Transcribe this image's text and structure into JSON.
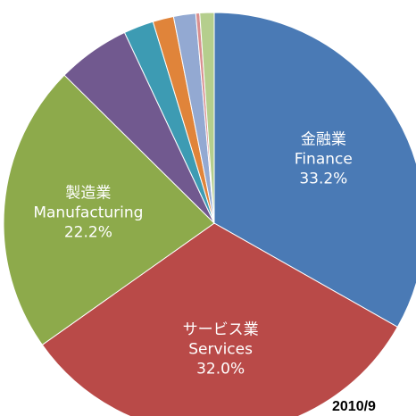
{
  "chart_data": {
    "type": "pie",
    "categories": [
      "金融業",
      "サービス業",
      "製造業",
      null,
      null,
      null,
      null,
      null,
      null
    ],
    "categories_en": [
      "Finance",
      "Services",
      "Manufacturing",
      null,
      null,
      null,
      null,
      null,
      null
    ],
    "values": [
      33.2,
      32.0,
      22.2,
      5.6,
      2.3,
      1.6,
      1.7,
      0.3,
      1.1
    ],
    "value_labels": [
      "33.2%",
      "32.0%",
      "22.2%",
      null,
      null,
      null,
      null,
      null,
      null
    ],
    "colors": [
      "#4a7ab5",
      "#b94a48",
      "#8daa4b",
      "#71598f",
      "#3d9bb3",
      "#e0843a",
      "#93a9d2",
      "#d88f8f",
      "#b5ce8d"
    ],
    "annotation": "2010/9"
  }
}
